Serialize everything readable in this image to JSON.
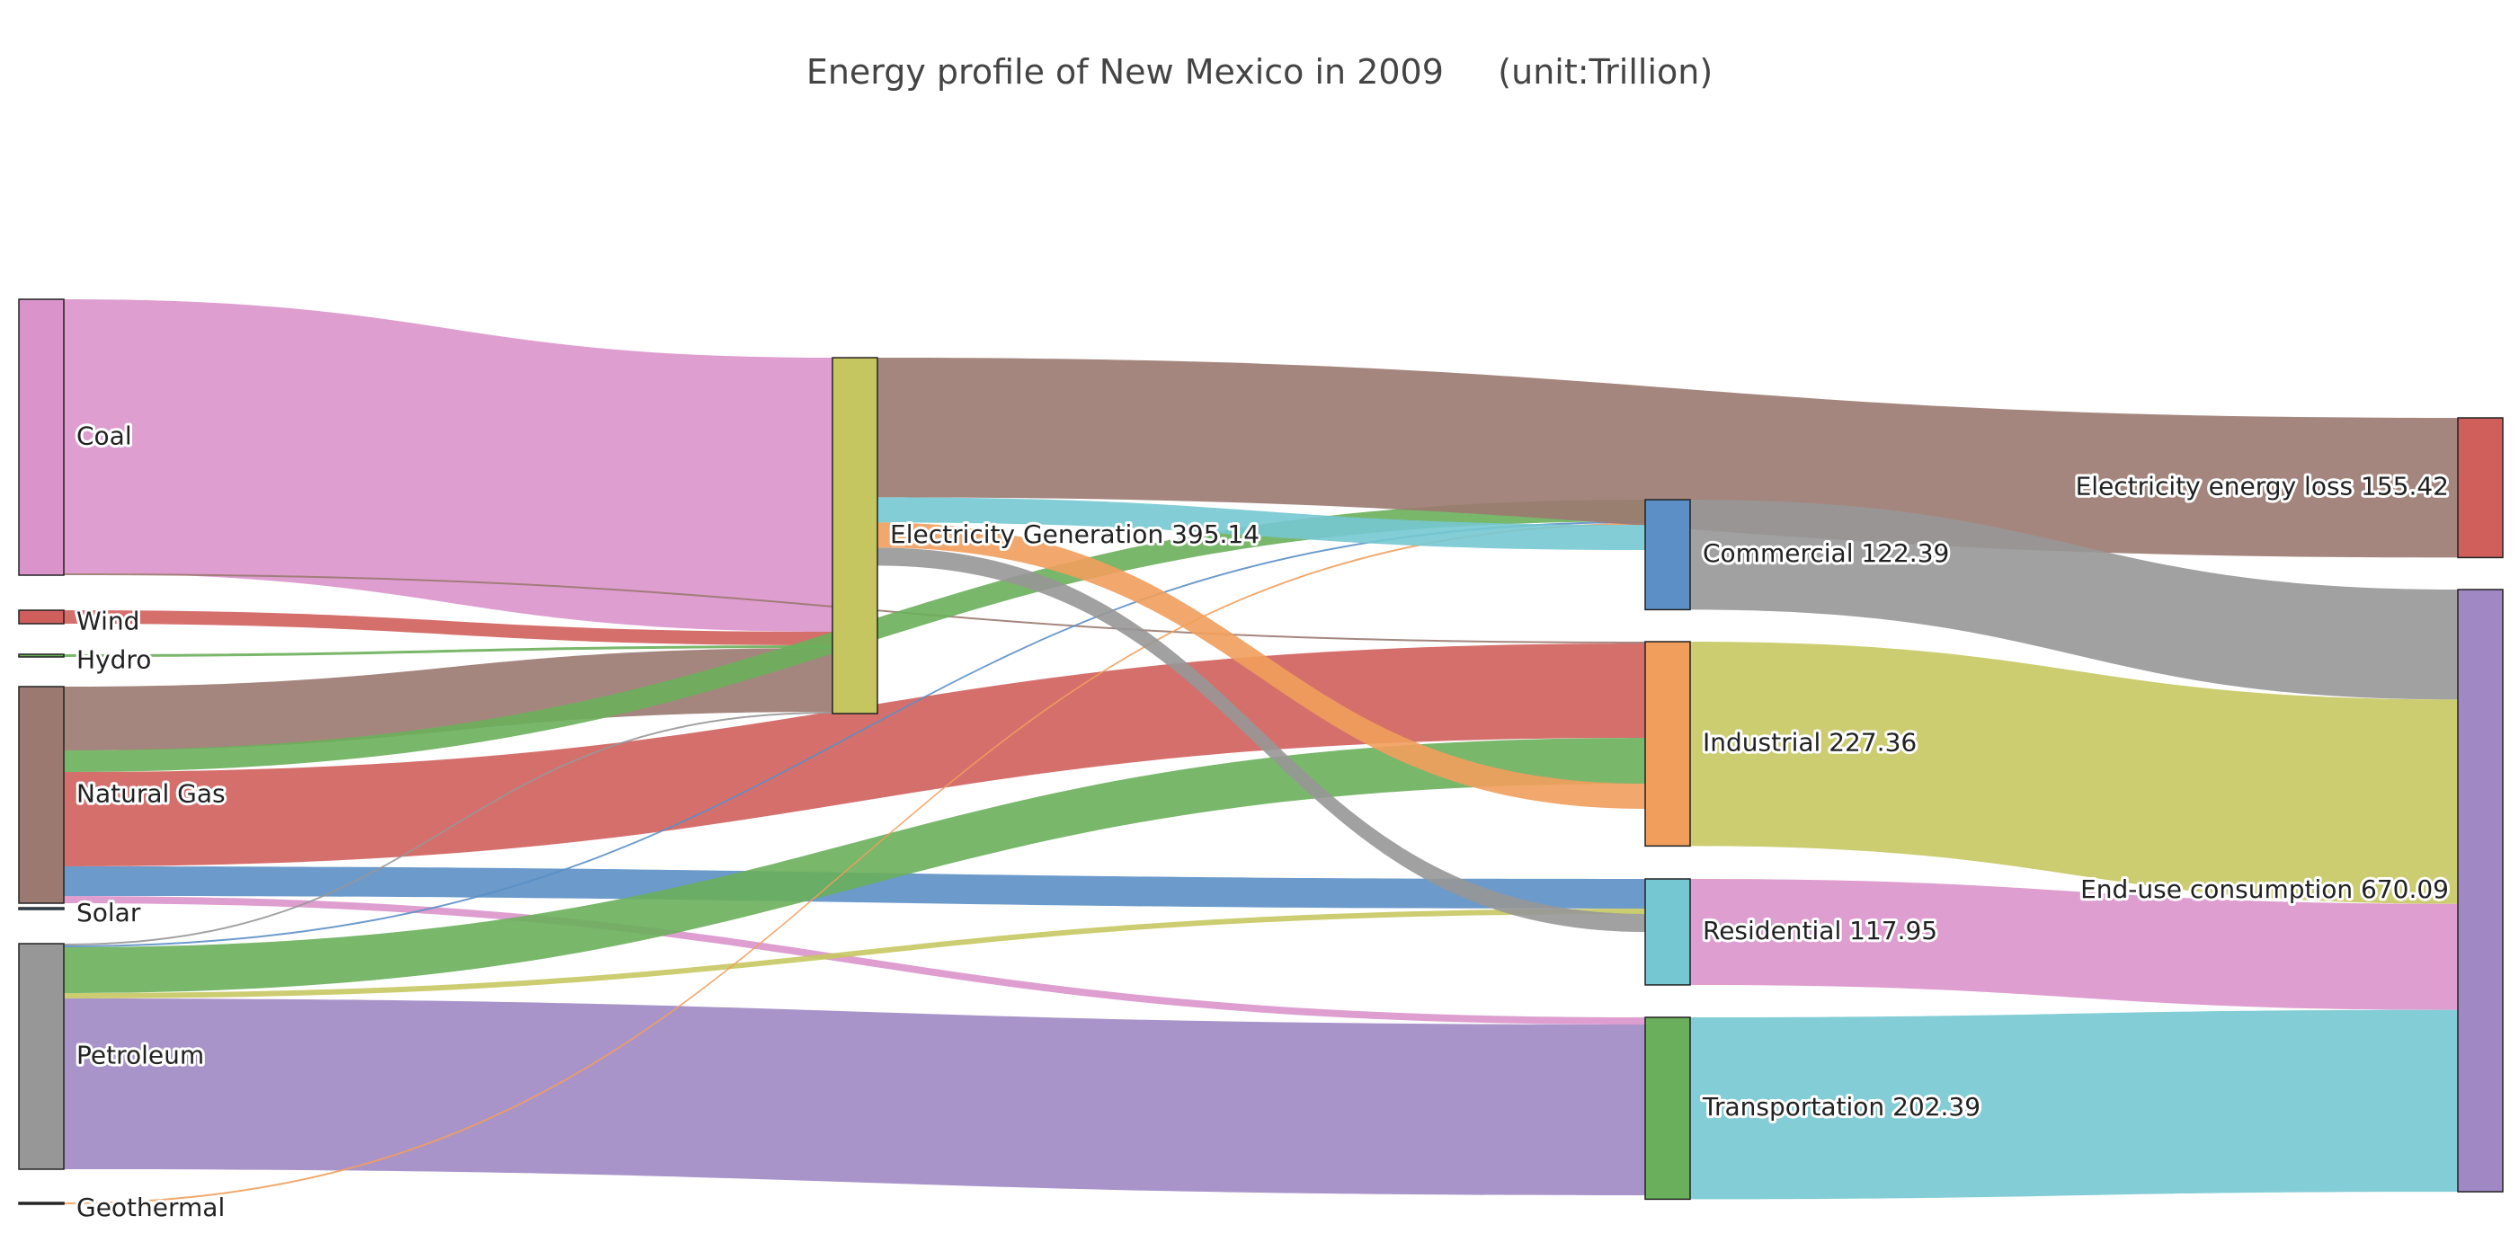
{
  "title": "Energy profile of New Mexico in 2009     (unit:Trillion)",
  "chart_data": {
    "type": "sankey",
    "title": "Energy profile of New Mexico in 2009     (unit:Trillion)",
    "nodes": [
      {
        "id": "coal",
        "label": "Coal",
        "color": "#da94cb"
      },
      {
        "id": "wind",
        "label": "Wind",
        "color": "#d05f5c"
      },
      {
        "id": "hydro",
        "label": "Hydro",
        "color": "#6aaf5b"
      },
      {
        "id": "gas",
        "label": "Natural Gas",
        "color": "#9b7970"
      },
      {
        "id": "solar",
        "label": "Solar",
        "color": "#5b8fc5"
      },
      {
        "id": "petroleum",
        "label": "Petroleum",
        "color": "#979797"
      },
      {
        "id": "geothermal",
        "label": "Geothermal",
        "color": "#333333"
      },
      {
        "id": "elecgen",
        "label": "Electricity Generation 395.14",
        "color": "#c6c661"
      },
      {
        "id": "commercial",
        "label": "Commercial 122.39",
        "color": "#5b8fc5"
      },
      {
        "id": "industrial",
        "label": "Industrial 227.36",
        "color": "#f19e5c"
      },
      {
        "id": "residential",
        "label": "Residential 117.95",
        "color": "#75c8d1"
      },
      {
        "id": "transportation",
        "label": "Transportation 202.39",
        "color": "#6aaf5b"
      },
      {
        "id": "loss",
        "label": "Electricity energy loss 155.42",
        "color": "#d05f5c"
      },
      {
        "id": "enduse",
        "label": "End-use consumption 670.09",
        "color": "#a088c4"
      }
    ],
    "links": [
      {
        "source": "coal",
        "target": "elecgen",
        "value": 305,
        "color": "#da94cb"
      },
      {
        "source": "coal",
        "target": "industrial",
        "value": 2,
        "color": "#9b7970"
      },
      {
        "source": "wind",
        "target": "elecgen",
        "value": 15,
        "color": "#d05f5c"
      },
      {
        "source": "hydro",
        "target": "elecgen",
        "value": 3,
        "color": "#6aaf5b"
      },
      {
        "source": "gas",
        "target": "elecgen",
        "value": 71,
        "color": "#9b7970"
      },
      {
        "source": "gas",
        "target": "commercial",
        "value": 24,
        "color": "#6aaf5b"
      },
      {
        "source": "gas",
        "target": "industrial",
        "value": 105,
        "color": "#d05f5c"
      },
      {
        "source": "gas",
        "target": "residential",
        "value": 33,
        "color": "#5b8fc5"
      },
      {
        "source": "gas",
        "target": "transportation",
        "value": 8,
        "color": "#da94cb"
      },
      {
        "source": "petroleum",
        "target": "elecgen",
        "value": 2,
        "color": "#979797"
      },
      {
        "source": "petroleum",
        "target": "commercial",
        "value": 2,
        "color": "#5b8fc5"
      },
      {
        "source": "petroleum",
        "target": "industrial",
        "value": 51,
        "color": "#6aaf5b"
      },
      {
        "source": "petroleum",
        "target": "residential",
        "value": 6,
        "color": "#c6c661"
      },
      {
        "source": "petroleum",
        "target": "transportation",
        "value": 190,
        "color": "#a088c4"
      },
      {
        "source": "geothermal",
        "target": "commercial",
        "value": 2,
        "color": "#f19e5c"
      },
      {
        "source": "elecgen",
        "target": "loss",
        "value": 155.42,
        "color": "#9b7970"
      },
      {
        "source": "elecgen",
        "target": "commercial",
        "value": 28,
        "color": "#75c8d1"
      },
      {
        "source": "elecgen",
        "target": "industrial",
        "value": 28,
        "color": "#f19e5c"
      },
      {
        "source": "elecgen",
        "target": "residential",
        "value": 20,
        "color": "#979797"
      },
      {
        "source": "commercial",
        "target": "enduse",
        "value": 122.39,
        "color": "#979797"
      },
      {
        "source": "industrial",
        "target": "enduse",
        "value": 227.36,
        "color": "#c6c661"
      },
      {
        "source": "residential",
        "target": "enduse",
        "value": 117.95,
        "color": "#da94cb"
      },
      {
        "source": "transportation",
        "target": "enduse",
        "value": 202.39,
        "color": "#75c8d1"
      }
    ]
  }
}
